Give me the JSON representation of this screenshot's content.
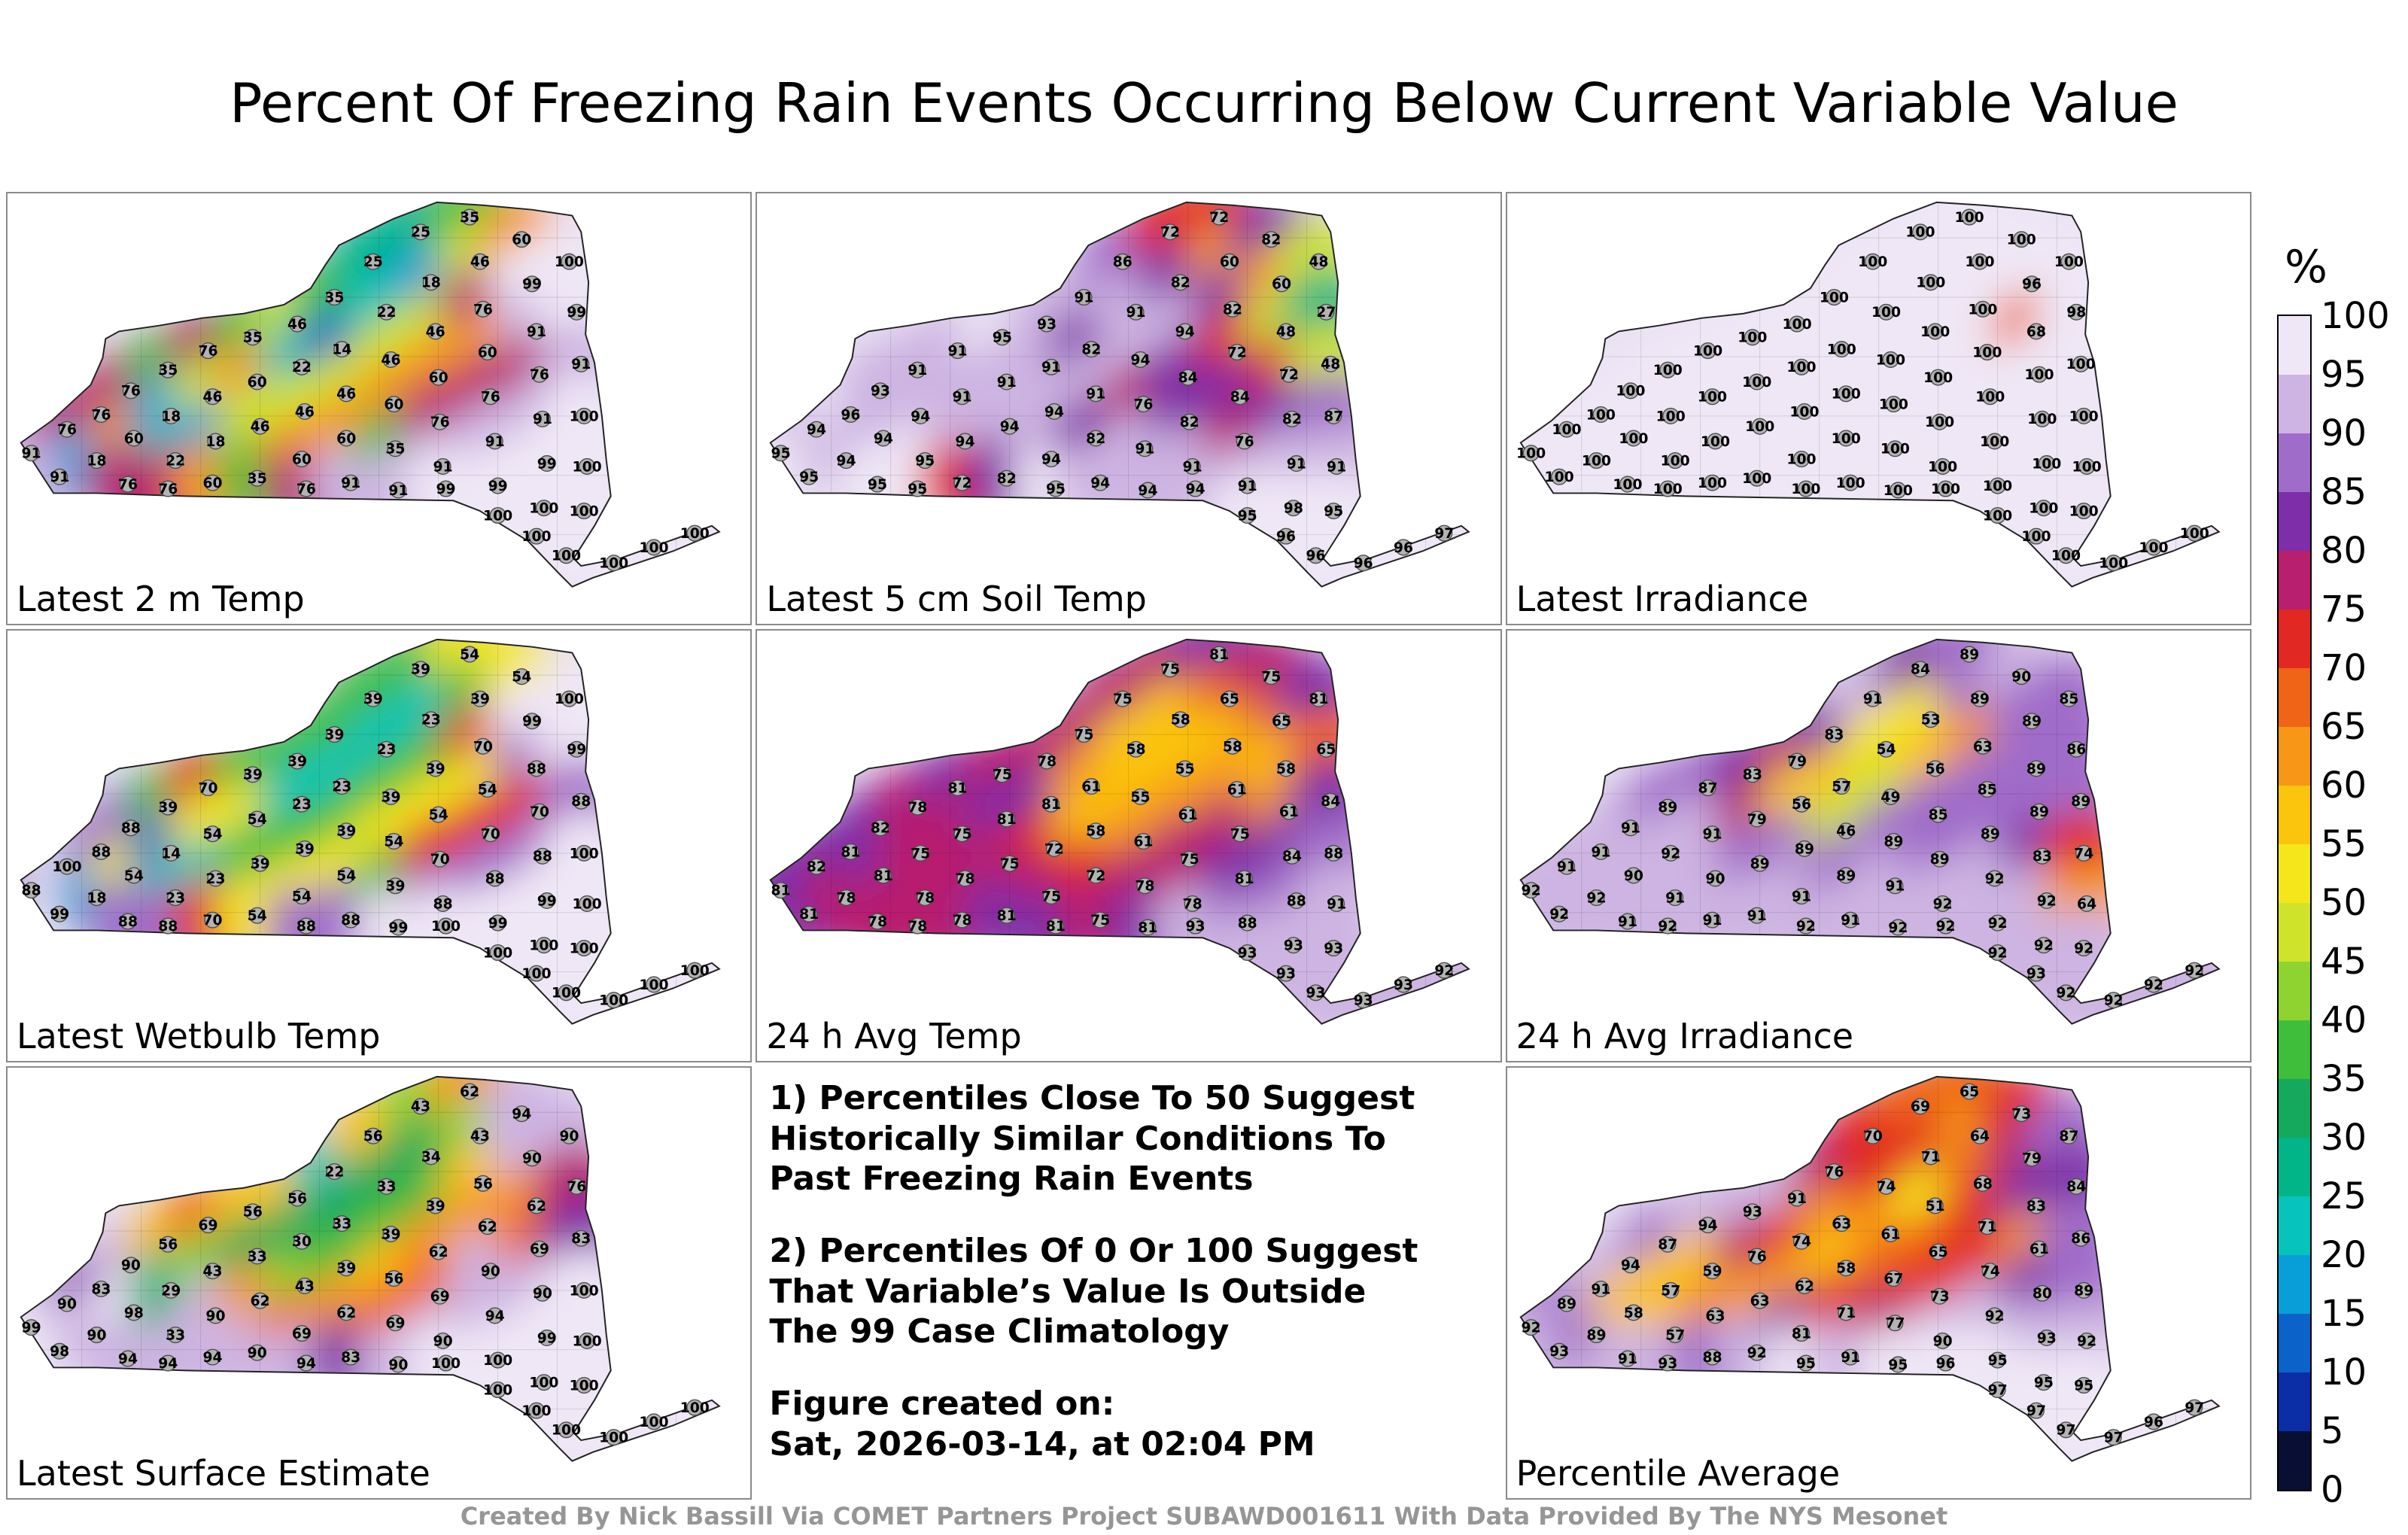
{
  "title": "Percent Of Freezing Rain Events Occurring Below Current Variable Value",
  "footer": "Created By Nick Bassill Via COMET Partners Project SUBAWD001611 With Data Provided By The NYS Mesonet",
  "notes": {
    "point1": "1) Percentiles Close To 50 Suggest\nHistorically Similar Conditions To\nPast Freezing Rain Events",
    "point2": "2) Percentiles Of 0 Or 100 Suggest\nThat Variable’s Value Is Outside\nThe 99 Case Climatology",
    "created_label": "Figure created on:",
    "created_value": "Sat, 2026-03-14, at 02:04 PM"
  },
  "chart_data": {
    "type": "heatmap",
    "region": "New York State",
    "value_range": [
      0,
      100
    ],
    "colorbar": {
      "title": "%",
      "tick_labels": [
        "100",
        "95",
        "90",
        "85",
        "80",
        "75",
        "70",
        "65",
        "60",
        "55",
        "50",
        "45",
        "40",
        "35",
        "30",
        "25",
        "20",
        "15",
        "10",
        "5",
        "0"
      ],
      "segment_colors_top_to_bottom": [
        "#efe7f6",
        "#cdb4e2",
        "#a06cc9",
        "#7e2ea8",
        "#b81f6e",
        "#e22822",
        "#ef6416",
        "#f79617",
        "#fbc40d",
        "#f5e61c",
        "#cfe32a",
        "#8ed32f",
        "#3fbe3c",
        "#14a95c",
        "#02b589",
        "#06c4bb",
        "#089ed8",
        "#0b63c9",
        "#0b2ea6",
        "#080f33"
      ],
      "base_fill": "#e9e1f3"
    },
    "stations": [
      [
        32,
        350
      ],
      [
        80,
        318
      ],
      [
        70,
        382
      ],
      [
        126,
        298
      ],
      [
        120,
        360
      ],
      [
        166,
        266
      ],
      [
        170,
        330
      ],
      [
        162,
        392
      ],
      [
        216,
        238
      ],
      [
        220,
        300
      ],
      [
        226,
        360
      ],
      [
        216,
        398
      ],
      [
        270,
        212
      ],
      [
        276,
        274
      ],
      [
        280,
        334
      ],
      [
        276,
        390
      ],
      [
        330,
        194
      ],
      [
        336,
        254
      ],
      [
        340,
        314
      ],
      [
        336,
        384
      ],
      [
        390,
        176
      ],
      [
        396,
        234
      ],
      [
        400,
        294
      ],
      [
        396,
        358
      ],
      [
        402,
        398
      ],
      [
        440,
        140
      ],
      [
        450,
        210
      ],
      [
        456,
        270
      ],
      [
        456,
        330
      ],
      [
        462,
        390
      ],
      [
        492,
        92
      ],
      [
        510,
        160
      ],
      [
        516,
        224
      ],
      [
        520,
        284
      ],
      [
        522,
        344
      ],
      [
        526,
        400
      ],
      [
        556,
        52
      ],
      [
        570,
        120
      ],
      [
        576,
        186
      ],
      [
        580,
        248
      ],
      [
        582,
        308
      ],
      [
        586,
        368
      ],
      [
        590,
        398
      ],
      [
        622,
        32
      ],
      [
        636,
        92
      ],
      [
        640,
        156
      ],
      [
        646,
        214
      ],
      [
        650,
        274
      ],
      [
        656,
        334
      ],
      [
        660,
        394
      ],
      [
        660,
        434
      ],
      [
        692,
        62
      ],
      [
        706,
        122
      ],
      [
        712,
        186
      ],
      [
        716,
        244
      ],
      [
        720,
        304
      ],
      [
        726,
        364
      ],
      [
        722,
        424
      ],
      [
        712,
        462
      ],
      [
        756,
        92
      ],
      [
        766,
        160
      ],
      [
        772,
        230
      ],
      [
        776,
        300
      ],
      [
        780,
        368
      ],
      [
        776,
        428
      ],
      [
        752,
        488
      ],
      [
        816,
        498
      ],
      [
        870,
        477
      ],
      [
        925,
        458
      ]
    ],
    "panels": [
      {
        "label": "Latest 2 m Temp",
        "values": [
          91,
          76,
          91,
          76,
          18,
          76,
          60,
          76,
          35,
          18,
          22,
          76,
          76,
          46,
          18,
          60,
          35,
          60,
          46,
          35,
          46,
          22,
          46,
          60,
          76,
          35,
          14,
          46,
          60,
          91,
          25,
          22,
          46,
          60,
          35,
          91,
          25,
          18,
          46,
          60,
          76,
          91,
          99,
          35,
          46,
          76,
          60,
          76,
          91,
          99,
          100,
          60,
          99,
          91,
          76,
          91,
          99,
          100,
          100,
          100,
          99,
          91,
          100,
          100,
          100,
          100,
          100,
          100,
          100
        ]
      },
      {
        "label": "Latest 5 cm Soil Temp",
        "values": [
          95,
          94,
          95,
          96,
          94,
          93,
          94,
          95,
          91,
          94,
          95,
          95,
          91,
          91,
          94,
          72,
          95,
          91,
          94,
          82,
          93,
          91,
          94,
          94,
          95,
          91,
          82,
          91,
          82,
          94,
          86,
          91,
          94,
          76,
          91,
          94,
          72,
          82,
          94,
          84,
          82,
          91,
          94,
          72,
          60,
          82,
          72,
          84,
          76,
          91,
          95,
          82,
          60,
          48,
          72,
          82,
          91,
          98,
          96,
          48,
          27,
          48,
          87,
          91,
          95,
          96,
          96,
          96,
          97
        ]
      },
      {
        "label": "Latest Irradiance",
        "values": [
          100,
          100,
          100,
          100,
          100,
          100,
          100,
          100,
          100,
          100,
          100,
          100,
          100,
          100,
          100,
          100,
          100,
          100,
          100,
          100,
          100,
          100,
          100,
          100,
          100,
          100,
          100,
          100,
          100,
          100,
          100,
          100,
          100,
          100,
          100,
          100,
          100,
          100,
          100,
          100,
          100,
          100,
          100,
          100,
          100,
          100,
          100,
          100,
          100,
          100,
          100,
          100,
          96,
          68,
          100,
          100,
          100,
          100,
          100,
          100,
          98,
          100,
          100,
          100,
          100,
          100,
          100,
          100,
          100
        ]
      },
      {
        "label": "Latest Wetbulb Temp",
        "values": [
          88,
          100,
          99,
          88,
          18,
          88,
          54,
          88,
          39,
          14,
          23,
          88,
          70,
          54,
          23,
          70,
          39,
          54,
          39,
          54,
          39,
          23,
          39,
          54,
          88,
          39,
          23,
          39,
          54,
          88,
          39,
          23,
          39,
          54,
          39,
          99,
          39,
          23,
          39,
          54,
          70,
          88,
          100,
          54,
          39,
          70,
          54,
          70,
          88,
          99,
          100,
          54,
          99,
          88,
          70,
          88,
          99,
          100,
          100,
          100,
          99,
          88,
          100,
          100,
          100,
          100,
          100,
          100,
          100
        ]
      },
      {
        "label": "24 h Avg Temp",
        "values": [
          81,
          82,
          81,
          81,
          78,
          82,
          81,
          78,
          78,
          75,
          78,
          78,
          81,
          75,
          78,
          78,
          75,
          81,
          75,
          81,
          78,
          81,
          72,
          75,
          81,
          75,
          61,
          58,
          72,
          75,
          75,
          58,
          55,
          61,
          78,
          81,
          75,
          58,
          55,
          61,
          75,
          78,
          93,
          81,
          65,
          58,
          61,
          75,
          81,
          88,
          93,
          75,
          65,
          58,
          61,
          84,
          88,
          93,
          93,
          81,
          65,
          84,
          88,
          91,
          93,
          93,
          93,
          93,
          92
        ]
      },
      {
        "label": "24 h Avg Irradiance",
        "values": [
          92,
          91,
          92,
          91,
          92,
          91,
          90,
          91,
          89,
          92,
          91,
          92,
          87,
          91,
          90,
          91,
          83,
          79,
          89,
          91,
          79,
          56,
          89,
          91,
          92,
          83,
          57,
          46,
          89,
          91,
          91,
          54,
          49,
          89,
          91,
          92,
          84,
          53,
          56,
          85,
          89,
          92,
          92,
          89,
          89,
          63,
          85,
          89,
          92,
          92,
          92,
          90,
          89,
          89,
          89,
          83,
          92,
          92,
          93,
          85,
          86,
          89,
          74,
          64,
          92,
          92,
          92,
          92,
          92
        ]
      },
      {
        "label": "Latest Surface Estimate",
        "values": [
          99,
          90,
          98,
          83,
          90,
          90,
          98,
          94,
          56,
          29,
          33,
          94,
          69,
          43,
          90,
          94,
          56,
          33,
          62,
          90,
          56,
          30,
          43,
          69,
          94,
          22,
          33,
          39,
          62,
          83,
          56,
          33,
          39,
          56,
          69,
          90,
          43,
          34,
          39,
          62,
          69,
          90,
          100,
          62,
          43,
          56,
          62,
          90,
          94,
          100,
          100,
          94,
          90,
          62,
          69,
          90,
          99,
          100,
          100,
          90,
          76,
          83,
          100,
          100,
          100,
          100,
          100,
          100,
          100
        ]
      },
      {
        "label": "Percentile Average",
        "values": [
          92,
          89,
          93,
          91,
          89,
          94,
          58,
          91,
          87,
          57,
          57,
          93,
          94,
          59,
          63,
          88,
          93,
          76,
          63,
          92,
          91,
          74,
          62,
          81,
          95,
          76,
          63,
          58,
          71,
          91,
          70,
          74,
          61,
          67,
          77,
          95,
          69,
          71,
          51,
          65,
          73,
          90,
          96,
          65,
          64,
          68,
          71,
          74,
          92,
          95,
          97,
          73,
          79,
          83,
          61,
          80,
          93,
          95,
          97,
          87,
          84,
          86,
          89,
          92,
          95,
          97,
          97,
          96,
          97
        ]
      }
    ]
  }
}
